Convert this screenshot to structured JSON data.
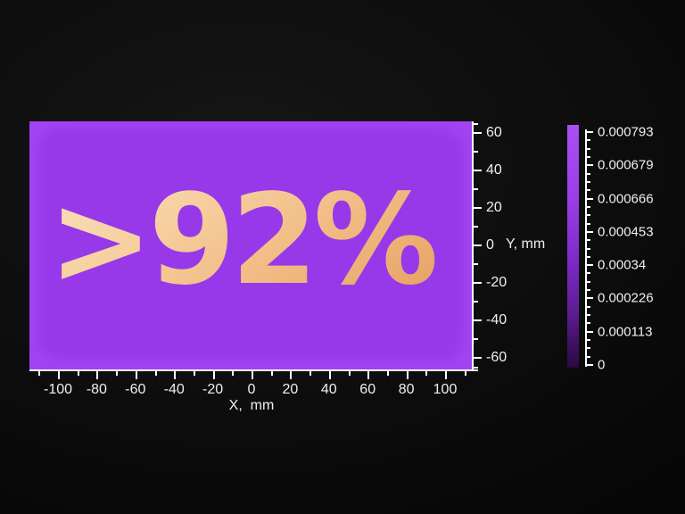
{
  "chart_data": {
    "type": "heatmap",
    "overlay_text": ">92%",
    "overlay_text_gradient": [
      "#fbe5c6",
      "#e0945a"
    ],
    "fill_color": "#a143f2",
    "axis_color": "#ffffff",
    "label_color": "#f0eff2",
    "x_axis": {
      "label": "X,  mm",
      "major_tick_labels": [
        "-100",
        "-80",
        "-60",
        "-40",
        "-20",
        "0",
        "20",
        "40",
        "60",
        "80",
        "100"
      ],
      "major_tick_values": [
        -100,
        -80,
        -60,
        -40,
        -20,
        0,
        20,
        40,
        60,
        80,
        100
      ],
      "minor_tick_values": [
        -110,
        -90,
        -70,
        -50,
        -30,
        -10,
        10,
        30,
        50,
        70,
        90,
        110
      ],
      "range": [
        -115,
        117
      ]
    },
    "y_axis": {
      "label": "Y, mm",
      "major_tick_labels": [
        "60",
        "40",
        "20",
        "0",
        "-20",
        "-40",
        "-60"
      ],
      "major_tick_values": [
        60,
        40,
        20,
        0,
        -20,
        -40,
        -60
      ],
      "minor_tick_values": [
        65,
        50,
        30,
        10,
        -10,
        -30,
        -50,
        -65
      ],
      "range": [
        -66,
        66
      ]
    },
    "colorbar": {
      "tick_labels": [
        "0.000793",
        "0.000679",
        "0.000666",
        "0.000453",
        "0.00034",
        "0.000226",
        "0.000113",
        "0"
      ],
      "minor_ticks_between_majors": 3,
      "gradient_top_color": "#a94ff4",
      "gradient_bottom_color": "#2a0a3f",
      "legend_position": "right"
    },
    "grid": false
  }
}
